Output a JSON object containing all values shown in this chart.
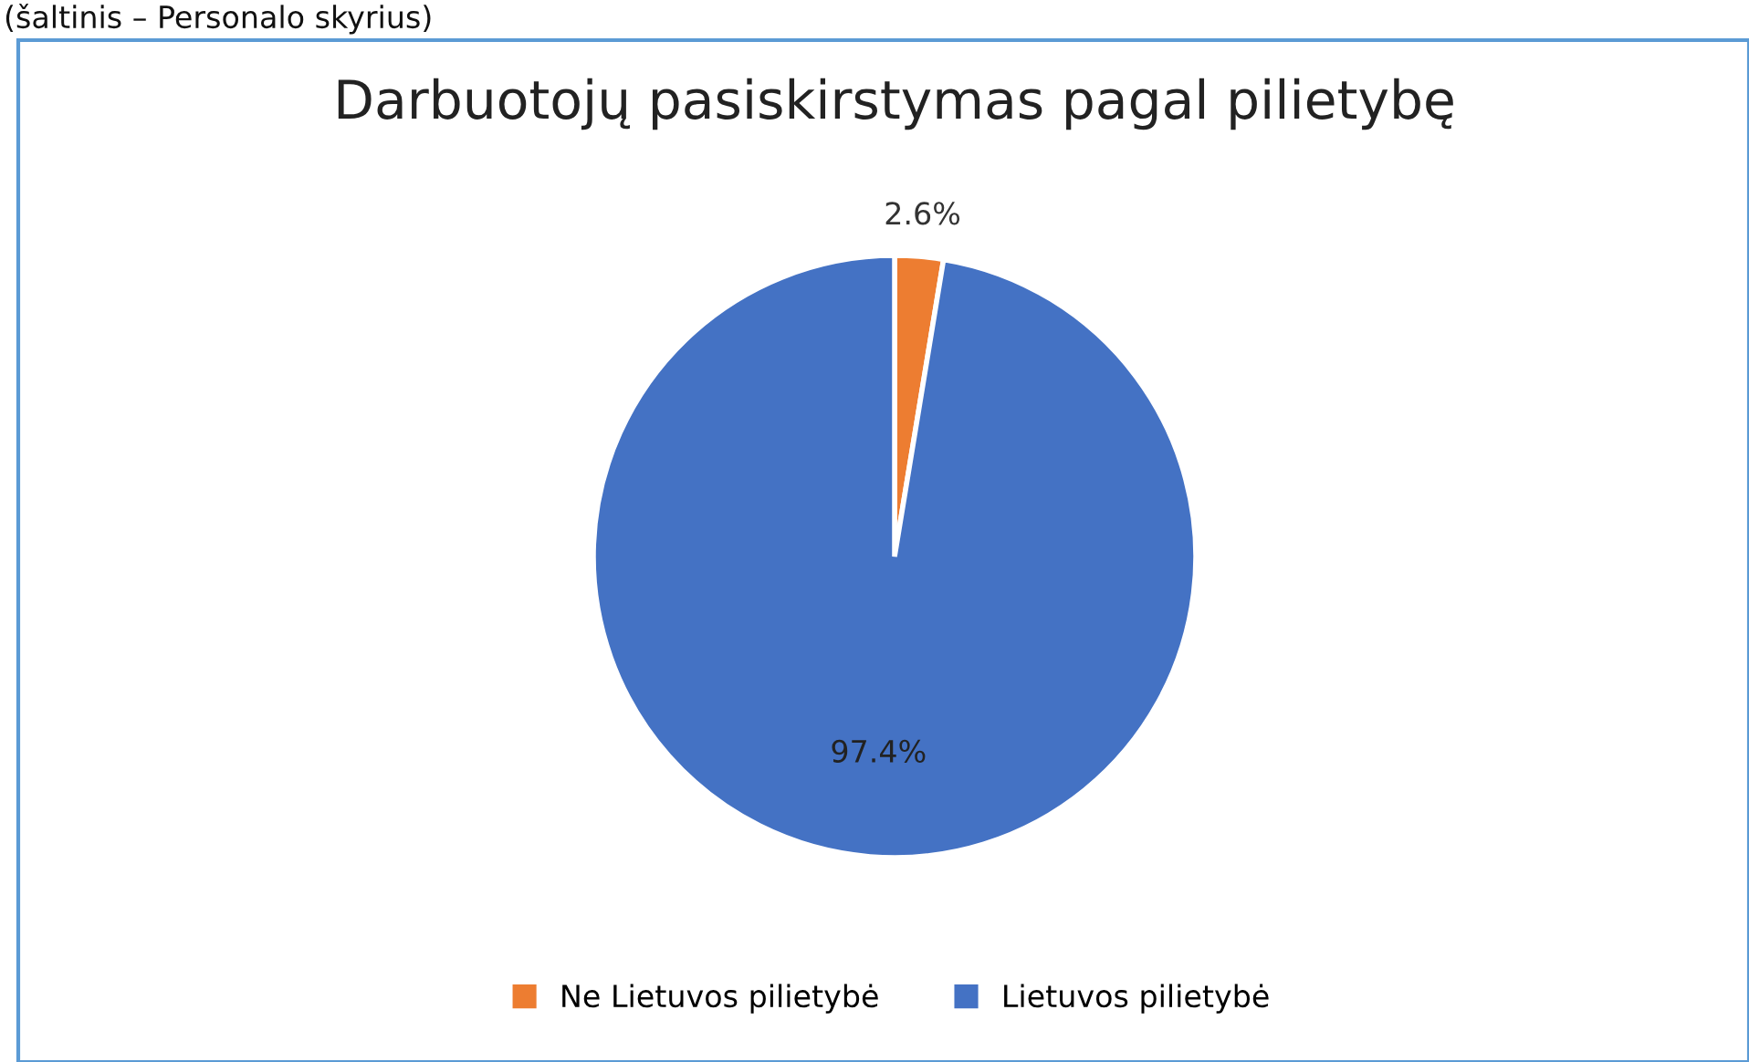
{
  "chart_data": {
    "type": "pie",
    "title": "Darbuotojų pasiskirstymas pagal pilietybę",
    "categories": [
      "Ne Lietuvos pilietybė",
      "Lietuvos pilietybė"
    ],
    "values": [
      2.6,
      97.4
    ],
    "colors": [
      "#ed7d31",
      "#4472c4"
    ],
    "value_labels": [
      "2.6%",
      "97.4%"
    ],
    "legend": "bottom",
    "annotations": [
      "(šaltinis – Personalo skyrius)"
    ]
  }
}
